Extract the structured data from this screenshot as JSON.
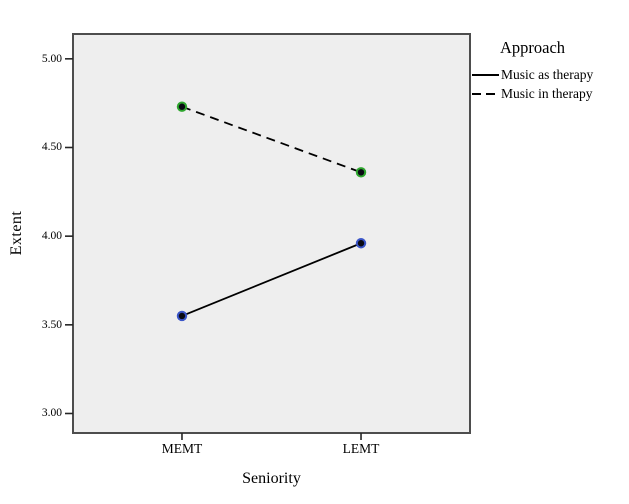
{
  "figure": {
    "background": "#ffffff",
    "panel_background": "#eeeeee",
    "frame_color": "#4d4d4d",
    "tick_color": "#262626",
    "data_line_color": "#000000",
    "text_color": "#000000"
  },
  "chart_data": {
    "type": "line",
    "title": "",
    "xlabel": "Seniority",
    "ylabel": "Extent",
    "legend_title": "Approach",
    "legend_position": "right-outside-top",
    "grid": false,
    "categories": [
      "MEMT",
      "LEMT"
    ],
    "series": [
      {
        "name": "Music as therapy",
        "line_style": "solid",
        "marker_ring_color": "#3a55c8",
        "marker_core_color": "#0a0a14",
        "values": [
          3.55,
          3.96
        ]
      },
      {
        "name": "Music in therapy",
        "line_style": "dashed",
        "marker_ring_color": "#2ea62e",
        "marker_core_color": "#0a0a14",
        "values": [
          4.73,
          4.36
        ]
      }
    ],
    "y_ticks": [
      "3.00",
      "3.50",
      "4.00",
      "4.50",
      "5.00"
    ],
    "ylim": [
      2.89,
      5.14
    ]
  }
}
